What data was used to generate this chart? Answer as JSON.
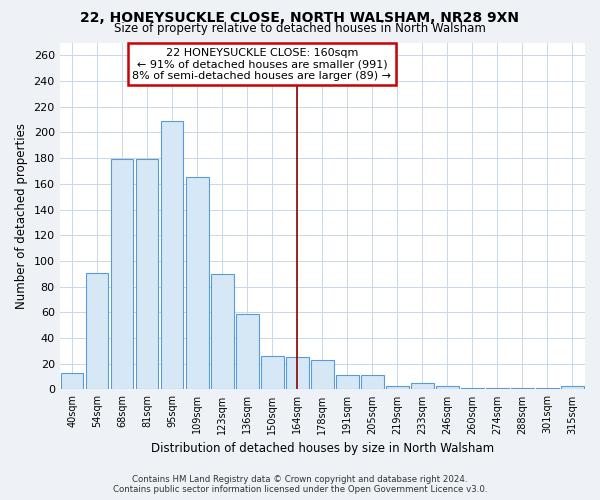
{
  "title": "22, HONEYSUCKLE CLOSE, NORTH WALSHAM, NR28 9XN",
  "subtitle": "Size of property relative to detached houses in North Walsham",
  "xlabel": "Distribution of detached houses by size in North Walsham",
  "ylabel": "Number of detached properties",
  "bar_labels": [
    "40sqm",
    "54sqm",
    "68sqm",
    "81sqm",
    "95sqm",
    "109sqm",
    "123sqm",
    "136sqm",
    "150sqm",
    "164sqm",
    "178sqm",
    "191sqm",
    "205sqm",
    "219sqm",
    "233sqm",
    "246sqm",
    "260sqm",
    "274sqm",
    "288sqm",
    "301sqm",
    "315sqm"
  ],
  "bar_values": [
    13,
    91,
    179,
    179,
    209,
    165,
    90,
    59,
    26,
    25,
    23,
    11,
    11,
    3,
    5,
    3,
    1,
    1,
    1,
    1,
    3
  ],
  "bar_color": "#d6e8f5",
  "bar_edge_color": "#5b9bd5",
  "vline_x": 9,
  "vline_color": "#8b0000",
  "annotation_line1": "22 HONEYSUCKLE CLOSE: 160sqm",
  "annotation_line2": "← 91% of detached houses are smaller (991)",
  "annotation_line3": "8% of semi-detached houses are larger (89) →",
  "ylim": [
    0,
    270
  ],
  "yticks": [
    0,
    20,
    40,
    60,
    80,
    100,
    120,
    140,
    160,
    180,
    200,
    220,
    240,
    260
  ],
  "footer_line1": "Contains HM Land Registry data © Crown copyright and database right 2024.",
  "footer_line2": "Contains public sector information licensed under the Open Government Licence v3.0.",
  "background_color": "#eef2f7",
  "plot_background_color": "#ffffff",
  "grid_color": "#c8d8e8"
}
